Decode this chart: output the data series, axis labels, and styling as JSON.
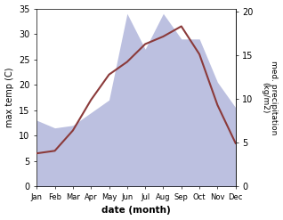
{
  "months": [
    "Jan",
    "Feb",
    "Mar",
    "Apr",
    "May",
    "Jun",
    "Jul",
    "Aug",
    "Sep",
    "Oct",
    "Nov",
    "Dec"
  ],
  "month_x": [
    0,
    1,
    2,
    3,
    4,
    5,
    6,
    7,
    8,
    9,
    10,
    11
  ],
  "temp": [
    6.5,
    7.0,
    11.0,
    17.0,
    22.0,
    24.5,
    28.0,
    29.5,
    31.5,
    26.0,
    16.0,
    8.5
  ],
  "precip": [
    13.0,
    11.5,
    12.0,
    14.5,
    17.0,
    34.0,
    27.0,
    34.0,
    29.0,
    29.0,
    20.5,
    15.5
  ],
  "temp_color": "#8B3A3A",
  "precip_fill_color": "#bcc0e0",
  "ylim_temp": [
    0,
    35
  ],
  "ylim_precip": [
    0,
    35
  ],
  "precip_scale": 1.7167,
  "ylabel_left": "max temp (C)",
  "ylabel_right": "med. precipitation\n(kg/m2)",
  "xlabel": "date (month)",
  "yticks_left": [
    0,
    5,
    10,
    15,
    20,
    25,
    30,
    35
  ],
  "yticks_right": [
    0,
    5,
    10,
    15,
    20
  ],
  "yticks_right_pos": [
    0,
    8.583,
    17.167,
    25.75,
    34.333
  ],
  "background_color": "#ffffff"
}
